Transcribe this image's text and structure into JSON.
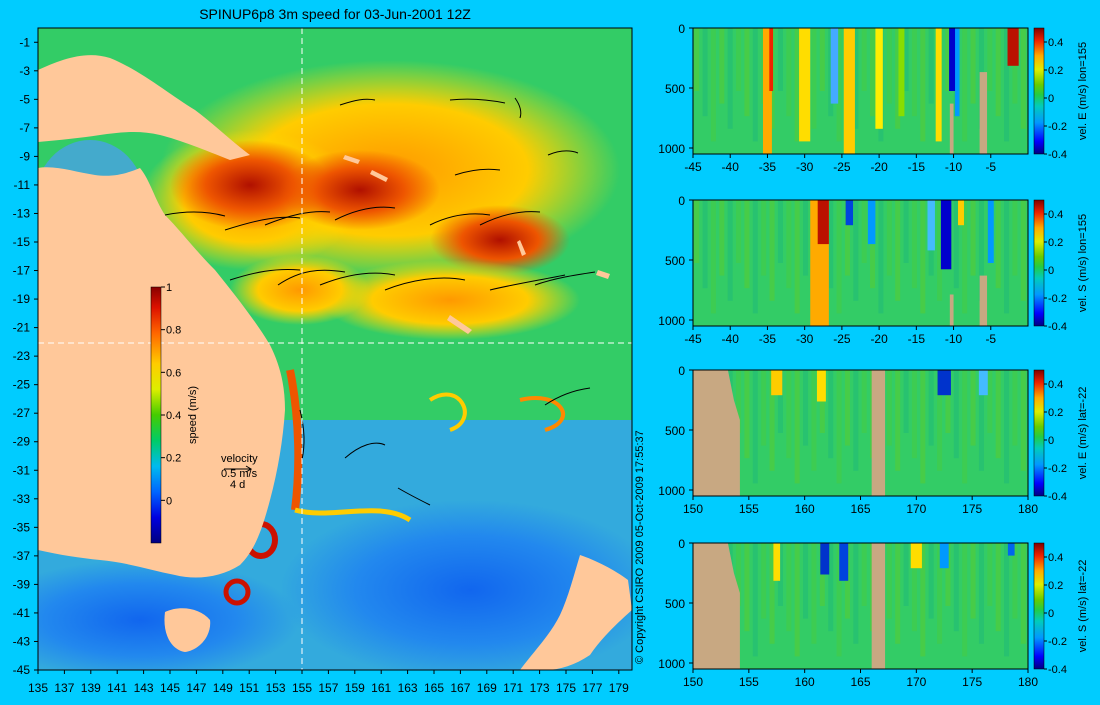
{
  "title": "SPINUP6p8 3m speed for 03-Jun-2001 12Z",
  "copyright": "© Copyright CSIRO 2009   05-Oct-2009 17:55:37",
  "colors": {
    "background": "#00ccff",
    "land": "#ffc89a",
    "section_land": "#c8a882",
    "divider": "#ffffff"
  },
  "map": {
    "lon_ticks": [
      "135",
      "137",
      "139",
      "141",
      "143",
      "145",
      "147",
      "149",
      "151",
      "153",
      "155",
      "157",
      "159",
      "161",
      "163",
      "165",
      "167",
      "169",
      "171",
      "173",
      "175",
      "177",
      "179"
    ],
    "lat_ticks": [
      "-1",
      "-3",
      "-5",
      "-7",
      "-9",
      "-11",
      "-13",
      "-15",
      "-17",
      "-19",
      "-21",
      "-23",
      "-25",
      "-27",
      "-29",
      "-31",
      "-33",
      "-35",
      "-37",
      "-39",
      "-41",
      "-43",
      "-45"
    ],
    "xlim": [
      135,
      180
    ],
    "ylim": [
      -45,
      0
    ],
    "section_lon": 155,
    "section_lat": -22,
    "colorbar": {
      "label": "speed (m/s)",
      "ticks": [
        "1",
        "0.8",
        "0.6",
        "0.4",
        "0.2",
        "0"
      ],
      "range": [
        -0.2,
        1
      ]
    },
    "velocity_legend": {
      "title": "velocity",
      "speed": "0.5 m/s",
      "time": "4 d"
    }
  },
  "panels": [
    {
      "id": "lon155-east",
      "label": "vel. E (m/s) lon=155",
      "x_ticks": [
        "-45",
        "-40",
        "-35",
        "-30",
        "-25",
        "-20",
        "-15",
        "-10",
        "-5"
      ],
      "y_ticks": [
        "0",
        "500",
        "1000"
      ],
      "cbar_ticks": [
        "0.4",
        "0.2",
        "0",
        "-0.2",
        "-0.4"
      ]
    },
    {
      "id": "lon155-south",
      "label": "vel. S (m/s) lon=155",
      "x_ticks": [
        "-45",
        "-40",
        "-35",
        "-30",
        "-25",
        "-20",
        "-15",
        "-10",
        "-5"
      ],
      "y_ticks": [
        "0",
        "500",
        "1000"
      ],
      "cbar_ticks": [
        "0.4",
        "0.2",
        "0",
        "-0.2",
        "-0.4"
      ]
    },
    {
      "id": "lat22-east",
      "label": "vel. E (m/s) lat=-22",
      "x_ticks": [
        "150",
        "155",
        "160",
        "165",
        "170",
        "175",
        "180"
      ],
      "y_ticks": [
        "0",
        "500",
        "1000"
      ],
      "cbar_ticks": [
        "0.4",
        "0.2",
        "0",
        "-0.2",
        "-0.4"
      ]
    },
    {
      "id": "lat22-south",
      "label": "vel. S (m/s) lat=-22",
      "x_ticks": [
        "150",
        "155",
        "160",
        "165",
        "170",
        "175",
        "180"
      ],
      "y_ticks": [
        "0",
        "500",
        "1000"
      ],
      "cbar_ticks": [
        "0.4",
        "0.2",
        "0",
        "-0.2",
        "-0.4"
      ]
    }
  ],
  "chart_data": [
    {
      "type": "heatmap",
      "title": "SPINUP6p8 3m speed for 03-Jun-2001 12Z",
      "variable": "speed (m/s)",
      "x_range": [
        135,
        180
      ],
      "y_range": [
        -45,
        0
      ],
      "x_ticks": [
        135,
        137,
        139,
        141,
        143,
        145,
        147,
        149,
        151,
        153,
        155,
        157,
        159,
        161,
        163,
        165,
        167,
        169,
        171,
        173,
        175,
        177,
        179
      ],
      "y_ticks": [
        -1,
        -3,
        -5,
        -7,
        -9,
        -11,
        -13,
        -15,
        -17,
        -19,
        -21,
        -23,
        -25,
        -27,
        -29,
        -31,
        -33,
        -35,
        -37,
        -39,
        -41,
        -43,
        -45
      ],
      "colorbar_range": [
        -0.2,
        1
      ],
      "colorbar_ticks": [
        0,
        0.2,
        0.4,
        0.6,
        0.8,
        1
      ],
      "section_lines": {
        "lon": 155,
        "lat": -22
      }
    },
    {
      "type": "heatmap",
      "variable": "vel. E (m/s) lon=155",
      "x_range": [
        -45,
        0
      ],
      "x_ticks": [
        -45,
        -40,
        -35,
        -30,
        -25,
        -20,
        -15,
        -10,
        -5
      ],
      "y_range": [
        0,
        1050
      ],
      "y_ticks": [
        0,
        500,
        1000
      ],
      "colorbar_range": [
        -0.4,
        0.5
      ],
      "colorbar_ticks": [
        -0.4,
        -0.2,
        0,
        0.2,
        0.4
      ]
    },
    {
      "type": "heatmap",
      "variable": "vel. S (m/s) lon=155",
      "x_range": [
        -45,
        0
      ],
      "x_ticks": [
        -45,
        -40,
        -35,
        -30,
        -25,
        -20,
        -15,
        -10,
        -5
      ],
      "y_range": [
        0,
        1050
      ],
      "y_ticks": [
        0,
        500,
        1000
      ],
      "colorbar_range": [
        -0.4,
        0.5
      ],
      "colorbar_ticks": [
        -0.4,
        -0.2,
        0,
        0.2,
        0.4
      ]
    },
    {
      "type": "heatmap",
      "variable": "vel. E (m/s) lat=-22",
      "x_range": [
        150,
        180
      ],
      "x_ticks": [
        150,
        155,
        160,
        165,
        170,
        175,
        180
      ],
      "y_range": [
        0,
        1050
      ],
      "y_ticks": [
        0,
        500,
        1000
      ],
      "colorbar_range": [
        -0.4,
        0.5
      ],
      "colorbar_ticks": [
        -0.4,
        -0.2,
        0,
        0.2,
        0.4
      ]
    },
    {
      "type": "heatmap",
      "variable": "vel. S (m/s) lat=-22",
      "x_range": [
        150,
        180
      ],
      "x_ticks": [
        150,
        155,
        160,
        165,
        170,
        175,
        180
      ],
      "y_range": [
        0,
        1050
      ],
      "y_ticks": [
        0,
        500,
        1000
      ],
      "colorbar_range": [
        -0.4,
        0.5
      ],
      "colorbar_ticks": [
        -0.4,
        -0.2,
        0,
        0.2,
        0.4
      ]
    }
  ]
}
